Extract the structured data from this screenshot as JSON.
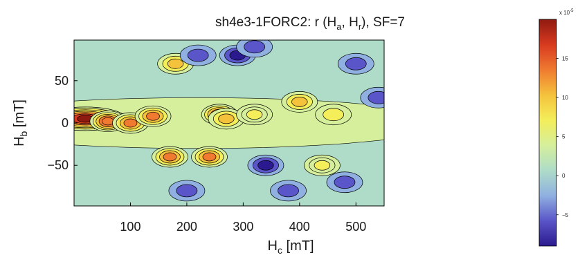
{
  "chart_data": {
    "type": "heatmap",
    "title": {
      "prefix": "sh4e3-1FORC2: r (H",
      "sub1": "a",
      "mid": ", H",
      "sub2": "r",
      "suffix": "), SF=7"
    },
    "xlabel": {
      "main": "H",
      "sub": "c",
      "unit": " [mT]"
    },
    "ylabel": {
      "main": "H",
      "sub": "b",
      "unit": " [mT]"
    },
    "xlim": [
      0,
      550
    ],
    "ylim": [
      -98,
      98
    ],
    "xticks": [
      100,
      200,
      300,
      400,
      500
    ],
    "yticks": [
      -50,
      0,
      50
    ],
    "grid": false,
    "contour_lines": true,
    "colormap": [
      "#2b1a8f",
      "#5a55c8",
      "#8fb0e0",
      "#aedcc8",
      "#d6ef9c",
      "#f3ee5a",
      "#f5c23c",
      "#ef7a30",
      "#d83a20",
      "#8f1a10"
    ],
    "colorbar": {
      "range": [
        -9,
        20
      ],
      "ticks": [
        -5,
        0,
        5,
        10,
        15
      ],
      "exponent_label": "x 10",
      "exponent_power": "-5",
      "position": "right"
    },
    "features": [
      {
        "x": 20,
        "y": 5,
        "level": 20
      },
      {
        "x": 60,
        "y": 2,
        "level": 15
      },
      {
        "x": 100,
        "y": 0,
        "level": 12
      },
      {
        "x": 140,
        "y": 8,
        "level": 12
      },
      {
        "x": 170,
        "y": -40,
        "level": 12
      },
      {
        "x": 180,
        "y": 70,
        "level": 10
      },
      {
        "x": 240,
        "y": -40,
        "level": 13
      },
      {
        "x": 258,
        "y": 10,
        "level": 16
      },
      {
        "x": 270,
        "y": 5,
        "level": 10
      },
      {
        "x": 320,
        "y": 10,
        "level": 8
      },
      {
        "x": 400,
        "y": 25,
        "level": 9
      },
      {
        "x": 440,
        "y": -50,
        "level": 8
      },
      {
        "x": 460,
        "y": 10,
        "level": 6
      },
      {
        "x": 220,
        "y": 80,
        "level": -7
      },
      {
        "x": 290,
        "y": 80,
        "level": -9
      },
      {
        "x": 340,
        "y": -50,
        "level": -8
      },
      {
        "x": 320,
        "y": 90,
        "level": -6
      },
      {
        "x": 500,
        "y": 70,
        "level": -6
      },
      {
        "x": 480,
        "y": -70,
        "level": -6
      },
      {
        "x": 380,
        "y": -80,
        "level": -7
      },
      {
        "x": 200,
        "y": -80,
        "level": -6
      },
      {
        "x": 540,
        "y": 30,
        "level": -5
      }
    ]
  }
}
